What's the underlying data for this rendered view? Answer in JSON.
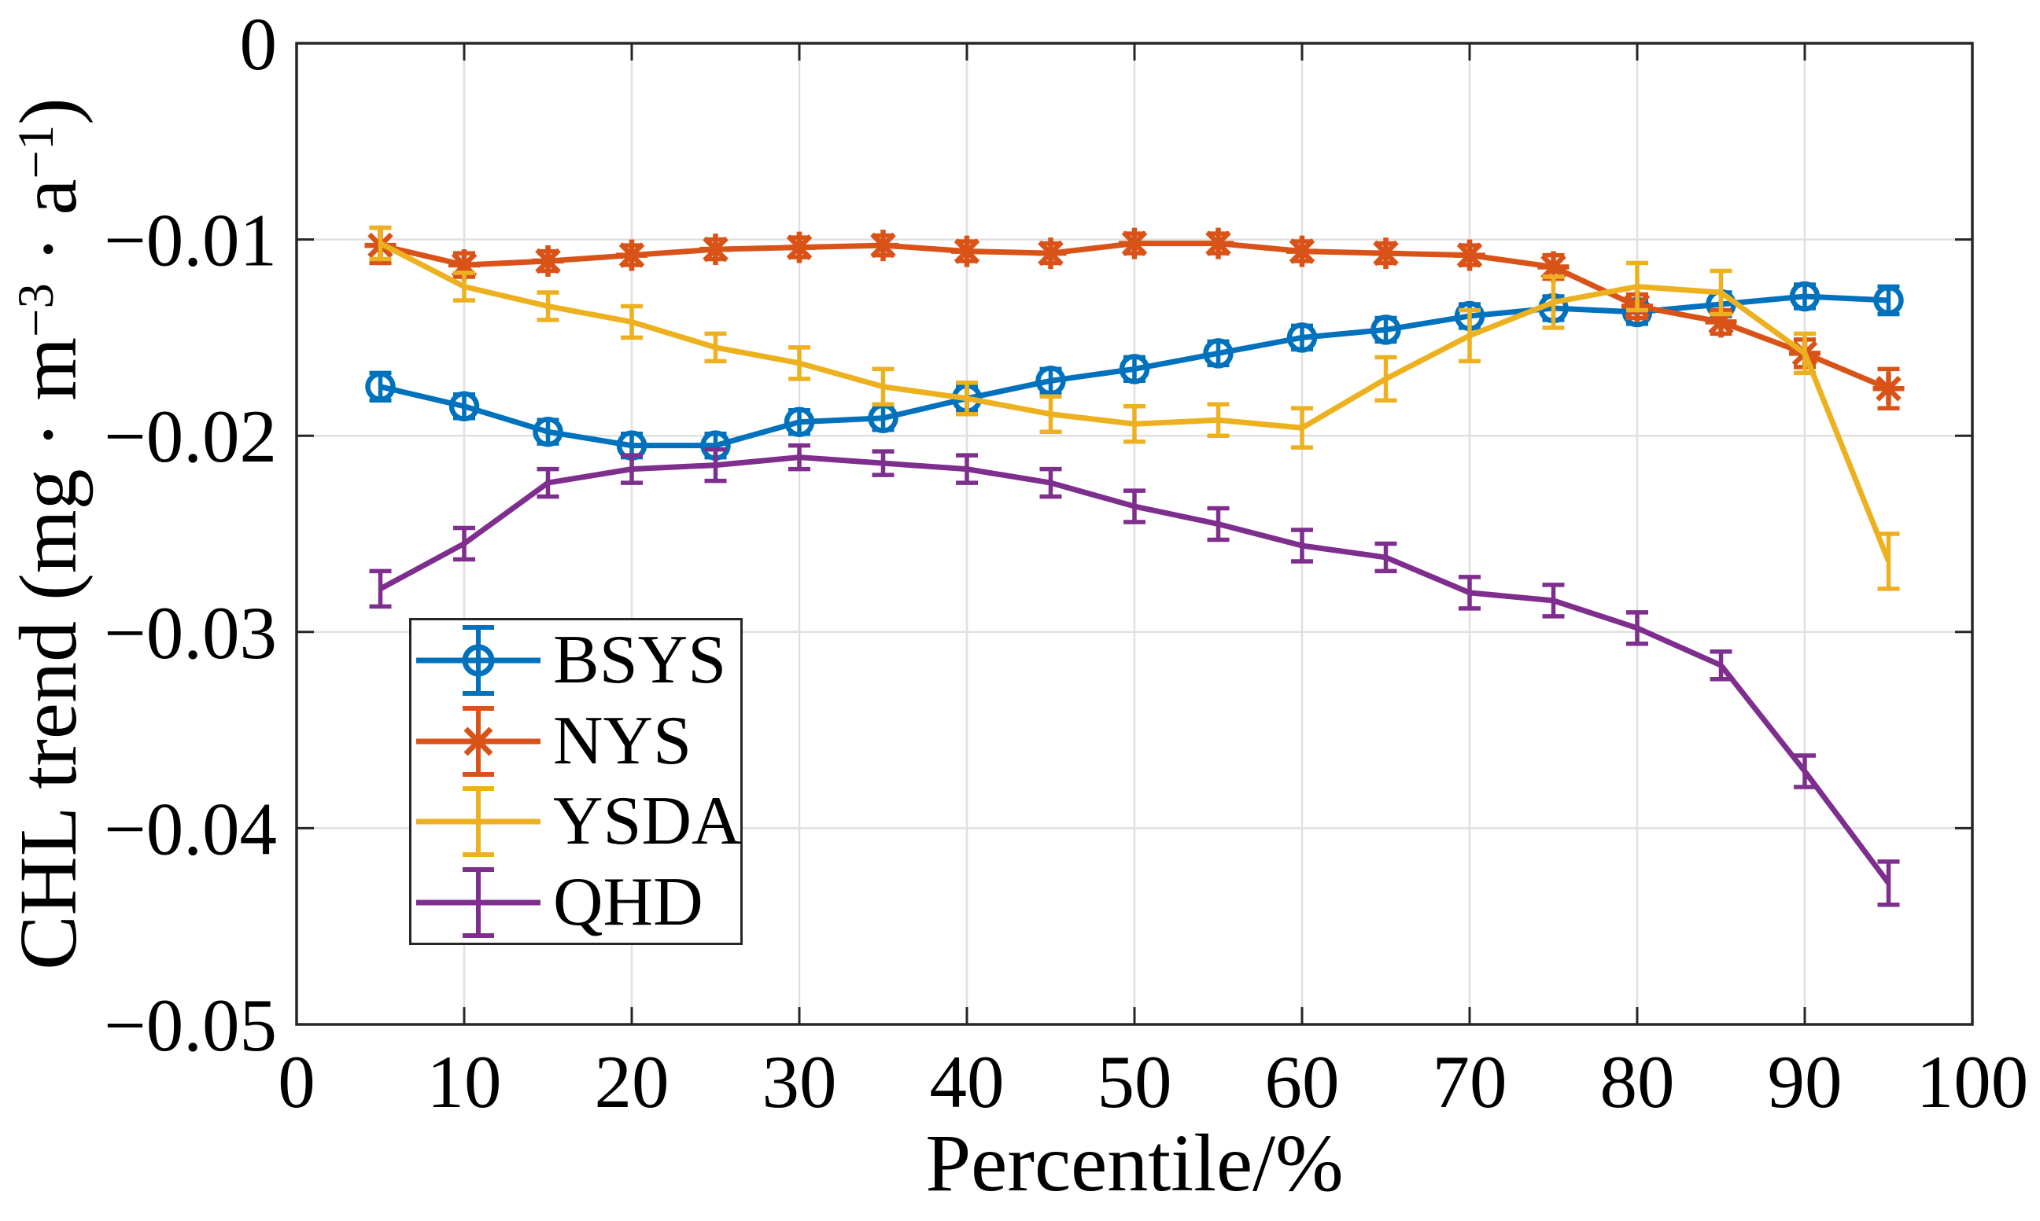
{
  "chart_data": {
    "type": "line",
    "title": "",
    "xlabel": "Percentile/%",
    "ylabel": "CHL trend (mg · m⁻³ · a⁻¹)",
    "ylabel_parts": [
      {
        "t": "CHL trend (mg · m",
        "sup": false
      },
      {
        "t": "−3",
        "sup": true
      },
      {
        "t": " · a",
        "sup": false
      },
      {
        "t": "−1",
        "sup": true
      },
      {
        "t": ")",
        "sup": false
      }
    ],
    "xlim": [
      0,
      100
    ],
    "ylim": [
      -0.05,
      0
    ],
    "grid": true,
    "legend_position": "lower-left-inside",
    "xticks": {
      "values": [
        0,
        10,
        20,
        30,
        40,
        50,
        60,
        70,
        80,
        90,
        100
      ],
      "labels": [
        "0",
        "10",
        "20",
        "30",
        "40",
        "50",
        "60",
        "70",
        "80",
        "90",
        "100"
      ]
    },
    "yticks": {
      "values": [
        0,
        -0.01,
        -0.02,
        -0.03,
        -0.04,
        -0.05
      ],
      "labels": [
        "0",
        "−0.01",
        "−0.02",
        "−0.03",
        "−0.04",
        "−0.05"
      ]
    },
    "x": [
      5,
      10,
      15,
      20,
      25,
      30,
      35,
      40,
      45,
      50,
      55,
      60,
      65,
      70,
      75,
      80,
      85,
      90,
      95
    ],
    "series": [
      {
        "name": "BSYS",
        "color": "#0072BD",
        "marker": "circle",
        "values": [
          -0.0175,
          -0.0185,
          -0.0198,
          -0.0205,
          -0.0205,
          -0.0193,
          -0.0191,
          -0.0181,
          -0.0172,
          -0.0166,
          -0.0158,
          -0.015,
          -0.0146,
          -0.0139,
          -0.0135,
          -0.0137,
          -0.0133,
          -0.0129,
          -0.0131
        ],
        "errors": [
          0.0007,
          0.0006,
          0.0006,
          0.0006,
          0.0006,
          0.0006,
          0.0006,
          0.0006,
          0.0006,
          0.0006,
          0.0006,
          0.0006,
          0.0006,
          0.0006,
          0.0006,
          0.0006,
          0.0006,
          0.0006,
          0.0007
        ]
      },
      {
        "name": "NYS",
        "color": "#D95319",
        "marker": "asterisk",
        "values": [
          -0.0103,
          -0.0113,
          -0.0111,
          -0.0108,
          -0.0105,
          -0.0104,
          -0.0103,
          -0.0106,
          -0.0107,
          -0.0102,
          -0.0102,
          -0.0106,
          -0.0107,
          -0.0108,
          -0.0114,
          -0.0134,
          -0.0142,
          -0.0158,
          -0.0176
        ],
        "errors": [
          0.0009,
          0.0006,
          0.0005,
          0.0005,
          0.0005,
          0.0005,
          0.0005,
          0.0005,
          0.0005,
          0.0005,
          0.0005,
          0.0005,
          0.0005,
          0.0005,
          0.0006,
          0.0006,
          0.0006,
          0.0007,
          0.001
        ]
      },
      {
        "name": "YSDA",
        "color": "#EDB120",
        "marker": "none",
        "values": [
          -0.0102,
          -0.0124,
          -0.0134,
          -0.0142,
          -0.0155,
          -0.0163,
          -0.0175,
          -0.0181,
          -0.0189,
          -0.0194,
          -0.0192,
          -0.0196,
          -0.0171,
          -0.0149,
          -0.0132,
          -0.0124,
          -0.0127,
          -0.0158,
          -0.0264
        ],
        "errors": [
          0.0008,
          0.0007,
          0.0007,
          0.0008,
          0.0007,
          0.0008,
          0.0009,
          0.0008,
          0.0009,
          0.0009,
          0.0008,
          0.001,
          0.0011,
          0.0013,
          0.0013,
          0.0012,
          0.0011,
          0.001,
          0.0014
        ]
      },
      {
        "name": "QHD",
        "color": "#7E2F8E",
        "marker": "none",
        "values": [
          -0.0278,
          -0.0255,
          -0.0224,
          -0.0217,
          -0.0215,
          -0.0211,
          -0.0214,
          -0.0217,
          -0.0224,
          -0.0236,
          -0.0245,
          -0.0256,
          -0.0262,
          -0.028,
          -0.0284,
          -0.0298,
          -0.0317,
          -0.0371,
          -0.0428
        ],
        "errors": [
          0.0009,
          0.0008,
          0.0007,
          0.0007,
          0.0008,
          0.0006,
          0.0006,
          0.0007,
          0.0007,
          0.0008,
          0.0008,
          0.0008,
          0.0007,
          0.0008,
          0.0008,
          0.0008,
          0.0007,
          0.0008,
          0.0011
        ]
      }
    ]
  },
  "style": {
    "axis_color": "#262626",
    "grid_color": "#e0e0e0",
    "tick_label_color": "#000000",
    "background": "#ffffff"
  }
}
